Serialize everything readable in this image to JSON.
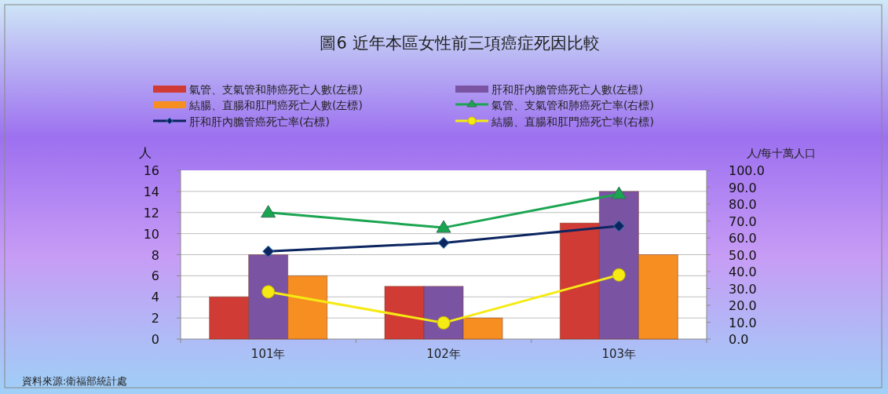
{
  "chart_data": {
    "type": "bar",
    "title": "圖6 近年本區女性前三項癌症死因比較",
    "ylabel": "人",
    "y2label": "人/每十萬人口",
    "categories": [
      "101年",
      "102年",
      "103年"
    ],
    "series": [
      {
        "name": "氣管、支氣管和肺癌死亡人數(左標)",
        "color": "#d13b35",
        "values": [
          4,
          5,
          11
        ]
      },
      {
        "name": "肝和肝內膽管癌死亡人數(左標)",
        "color": "#7b53a3",
        "values": [
          8,
          5,
          14
        ]
      },
      {
        "name": "結腸、直腸和肛門癌死亡人數(左標)",
        "color": "#f68e22",
        "values": [
          6,
          2,
          8
        ]
      },
      {
        "name": "氣管、支氣管和肺癌死亡率(右標)",
        "type": "line",
        "axis": "y2",
        "marker": "triangle",
        "color": "#1aa551",
        "values": [
          75,
          66,
          86
        ]
      },
      {
        "name": "肝和肝內膽管癌死亡率(右標)",
        "type": "line",
        "axis": "y2",
        "marker": "diamond",
        "color": "#0c2560",
        "values": [
          52,
          57,
          67
        ]
      },
      {
        "name": "結腸、直腸和肛門癌死亡率(右標)",
        "type": "line",
        "axis": "y2",
        "marker": "circle",
        "color": "#f5ea14",
        "values": [
          28,
          9.6,
          38
        ]
      }
    ],
    "ylim": [
      0,
      16
    ],
    "yticks": [
      0,
      2,
      4,
      6,
      8,
      10,
      12,
      14,
      16
    ],
    "y2lim": [
      0,
      100
    ],
    "y2ticks": [
      {
        "value": 0,
        "label": "0.0"
      },
      {
        "value": 10,
        "label": "10.0"
      },
      {
        "value": 20,
        "label": "20.0"
      },
      {
        "value": 30,
        "label": "30.0"
      },
      {
        "value": 40,
        "label": "40.0"
      },
      {
        "value": 50,
        "label": "50.0"
      },
      {
        "value": 60,
        "label": "60.0"
      },
      {
        "value": 70,
        "label": "70.0"
      },
      {
        "value": 80,
        "label": "80.0"
      },
      {
        "value": 90,
        "label": "90.0"
      },
      {
        "value": 100,
        "label": "100.0"
      }
    ],
    "grid": "y",
    "legend": "top",
    "annotations": [
      "資料來源:衛福部統計處"
    ]
  }
}
